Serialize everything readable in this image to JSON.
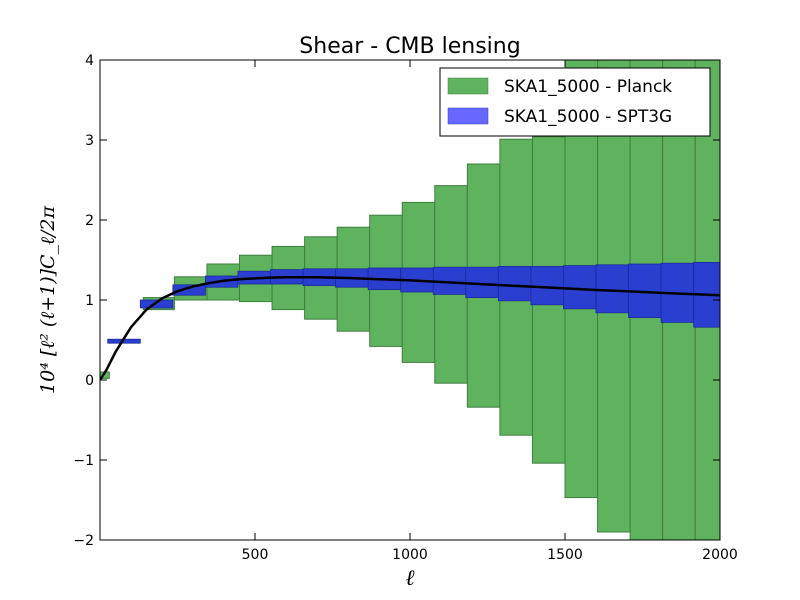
{
  "chart_data": {
    "type": "bar",
    "title": "Shear - CMB lensing",
    "xlabel": "ℓ",
    "ylabel": "10⁴ [ℓ² (ℓ+1)]C_ℓ/2π",
    "xlim": [
      0,
      2000
    ],
    "ylim": [
      -2,
      4
    ],
    "xticks": [
      500,
      1000,
      1500,
      2000
    ],
    "yticks": [
      -2,
      -1,
      0,
      1,
      2,
      3,
      4
    ],
    "xtick_labels": [
      "500",
      "1000",
      "1500",
      "2000"
    ],
    "ytick_labels": [
      "−2",
      "−1",
      "0",
      "1",
      "2",
      "3",
      "4"
    ],
    "legend_position": "top-right",
    "colors": {
      "planck": "#5fb35f",
      "planck_edge": "#3f7f3f",
      "spt3g": "#2a3fd0",
      "spt3g_legend": "#6868ff",
      "curve": "#000000"
    },
    "series": [
      {
        "name": "SKA1_5000 - Planck",
        "kind": "band",
        "bins": [
          {
            "x0": 0,
            "x1": 30,
            "lo": 0.02,
            "hi": 0.1
          },
          {
            "x0": 140,
            "x1": 240,
            "lo": 0.88,
            "hi": 1.03
          },
          {
            "x0": 240,
            "x1": 345,
            "lo": 1.0,
            "hi": 1.29
          },
          {
            "x0": 345,
            "x1": 450,
            "lo": 1.0,
            "hi": 1.45
          },
          {
            "x0": 450,
            "x1": 555,
            "lo": 0.98,
            "hi": 1.56
          },
          {
            "x0": 555,
            "x1": 660,
            "lo": 0.88,
            "hi": 1.67
          },
          {
            "x0": 660,
            "x1": 765,
            "lo": 0.76,
            "hi": 1.79
          },
          {
            "x0": 765,
            "x1": 870,
            "lo": 0.61,
            "hi": 1.91
          },
          {
            "x0": 870,
            "x1": 975,
            "lo": 0.42,
            "hi": 2.06
          },
          {
            "x0": 975,
            "x1": 1080,
            "lo": 0.22,
            "hi": 2.22
          },
          {
            "x0": 1080,
            "x1": 1185,
            "lo": -0.04,
            "hi": 2.43
          },
          {
            "x0": 1185,
            "x1": 1290,
            "lo": -0.34,
            "hi": 2.7
          },
          {
            "x0": 1290,
            "x1": 1395,
            "lo": -0.69,
            "hi": 3.01
          },
          {
            "x0": 1395,
            "x1": 1500,
            "lo": -1.04,
            "hi": 3.04
          },
          {
            "x0": 1500,
            "x1": 1605,
            "lo": -1.47,
            "hi": 4.0
          },
          {
            "x0": 1605,
            "x1": 1710,
            "lo": -1.9,
            "hi": 4.0
          },
          {
            "x0": 1710,
            "x1": 1815,
            "lo": -2.0,
            "hi": 4.0
          },
          {
            "x0": 1815,
            "x1": 1920,
            "lo": -2.0,
            "hi": 4.0
          },
          {
            "x0": 1920,
            "x1": 2000,
            "lo": -2.0,
            "hi": 4.0
          }
        ]
      },
      {
        "name": "SKA1_5000 - SPT3G",
        "kind": "band",
        "bins": [
          {
            "x0": 25,
            "x1": 130,
            "lo": 0.46,
            "hi": 0.51
          },
          {
            "x0": 130,
            "x1": 235,
            "lo": 0.9,
            "hi": 1.0
          },
          {
            "x0": 235,
            "x1": 340,
            "lo": 1.06,
            "hi": 1.19
          },
          {
            "x0": 340,
            "x1": 445,
            "lo": 1.16,
            "hi": 1.3
          },
          {
            "x0": 445,
            "x1": 550,
            "lo": 1.2,
            "hi": 1.36
          },
          {
            "x0": 550,
            "x1": 655,
            "lo": 1.2,
            "hi": 1.38
          },
          {
            "x0": 655,
            "x1": 760,
            "lo": 1.18,
            "hi": 1.39
          },
          {
            "x0": 760,
            "x1": 865,
            "lo": 1.16,
            "hi": 1.39
          },
          {
            "x0": 865,
            "x1": 970,
            "lo": 1.13,
            "hi": 1.4
          },
          {
            "x0": 970,
            "x1": 1075,
            "lo": 1.1,
            "hi": 1.4
          },
          {
            "x0": 1075,
            "x1": 1180,
            "lo": 1.07,
            "hi": 1.41
          },
          {
            "x0": 1180,
            "x1": 1285,
            "lo": 1.03,
            "hi": 1.41
          },
          {
            "x0": 1285,
            "x1": 1390,
            "lo": 0.99,
            "hi": 1.42
          },
          {
            "x0": 1390,
            "x1": 1495,
            "lo": 0.94,
            "hi": 1.42
          },
          {
            "x0": 1495,
            "x1": 1600,
            "lo": 0.89,
            "hi": 1.43
          },
          {
            "x0": 1600,
            "x1": 1705,
            "lo": 0.84,
            "hi": 1.44
          },
          {
            "x0": 1705,
            "x1": 1810,
            "lo": 0.78,
            "hi": 1.45
          },
          {
            "x0": 1810,
            "x1": 1915,
            "lo": 0.72,
            "hi": 1.46
          },
          {
            "x0": 1915,
            "x1": 2000,
            "lo": 0.66,
            "hi": 1.47
          }
        ]
      },
      {
        "name": "theory",
        "kind": "line",
        "x": [
          0,
          20,
          50,
          100,
          150,
          200,
          250,
          300,
          350,
          400,
          450,
          500,
          550,
          600,
          650,
          700,
          800,
          900,
          1000,
          1100,
          1200,
          1300,
          1400,
          1500,
          1600,
          1700,
          1800,
          1900,
          2000
        ],
        "y": [
          0.0,
          0.12,
          0.35,
          0.66,
          0.88,
          1.02,
          1.11,
          1.17,
          1.21,
          1.24,
          1.26,
          1.27,
          1.28,
          1.285,
          1.285,
          1.285,
          1.275,
          1.26,
          1.245,
          1.225,
          1.205,
          1.185,
          1.165,
          1.145,
          1.125,
          1.11,
          1.09,
          1.075,
          1.06
        ]
      }
    ],
    "legend": [
      {
        "label": "SKA1_5000 - Planck",
        "color_key": "planck"
      },
      {
        "label": "SKA1_5000 - SPT3G",
        "color_key": "spt3g_legend"
      }
    ]
  }
}
